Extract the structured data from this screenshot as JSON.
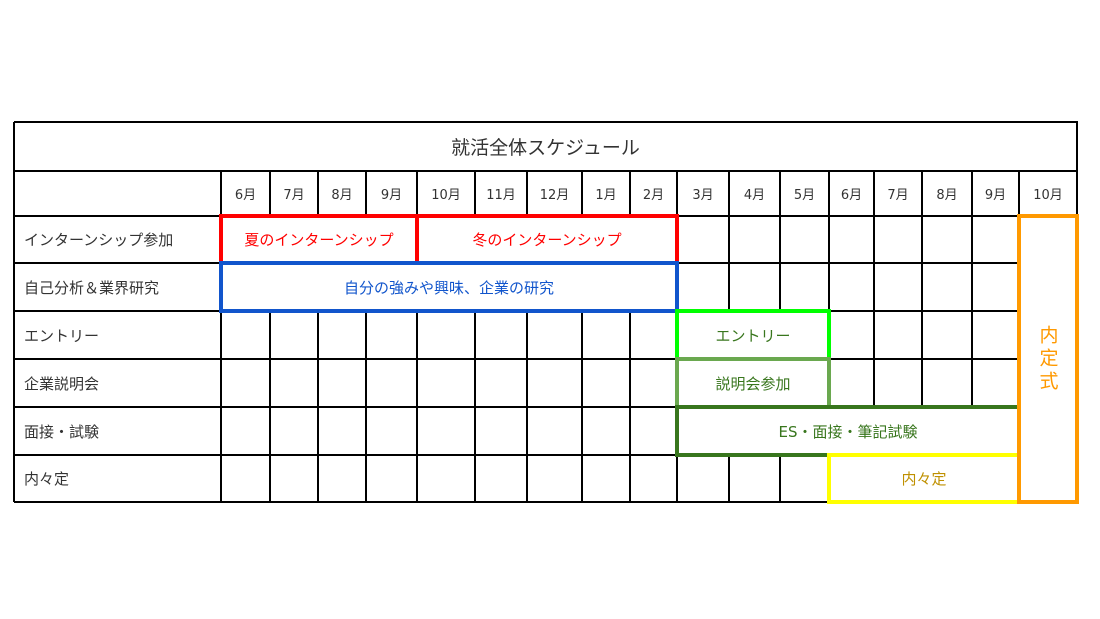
{
  "title": "就活全体スケジュール",
  "months": [
    "6月",
    "7月",
    "8月",
    "9月",
    "10月",
    "11月",
    "12月",
    "1月",
    "2月",
    "3月",
    "4月",
    "5月",
    "6月",
    "7月",
    "8月",
    "9月",
    "10月"
  ],
  "rows": [
    "インターンシップ参加",
    "自己分析＆業界研究",
    "エントリー",
    "企業説明会",
    "面接・試験",
    "内々定"
  ],
  "bars": [
    {
      "label": "夏のインターンシップ",
      "row_start": 0,
      "row_end": 0,
      "month_start": 0,
      "month_end": 3,
      "border": "#ff0000",
      "text": "#ff0000"
    },
    {
      "label": "冬のインターンシップ",
      "row_start": 0,
      "row_end": 0,
      "month_start": 4,
      "month_end": 8,
      "border": "#ff0000",
      "text": "#ff0000"
    },
    {
      "label": "自分の強みや興味、企業の研究",
      "row_start": 1,
      "row_end": 1,
      "month_start": 0,
      "month_end": 8,
      "border": "#1155cc",
      "text": "#1155cc"
    },
    {
      "label": "エントリー",
      "row_start": 2,
      "row_end": 2,
      "month_start": 9,
      "month_end": 11,
      "border": "#00ff00",
      "text": "#38761d"
    },
    {
      "label": "説明会参加",
      "row_start": 3,
      "row_end": 3,
      "month_start": 9,
      "month_end": 11,
      "border": "#6aa84f",
      "text": "#38761d"
    },
    {
      "label": "ES・面接・筆記試験",
      "row_start": 4,
      "row_end": 4,
      "month_start": 9,
      "month_end": 15,
      "border": "#38761d",
      "text": "#38761d"
    },
    {
      "label": "内々定",
      "row_start": 5,
      "row_end": 5,
      "month_start": 12,
      "month_end": 15,
      "border": "#ffff00",
      "text": "#bf9000"
    },
    {
      "label": "内定式",
      "row_start": 0,
      "row_end": 5,
      "month_start": 16,
      "month_end": 16,
      "border": "#ff9900",
      "text": "#ff9900",
      "vertical": true
    }
  ]
}
